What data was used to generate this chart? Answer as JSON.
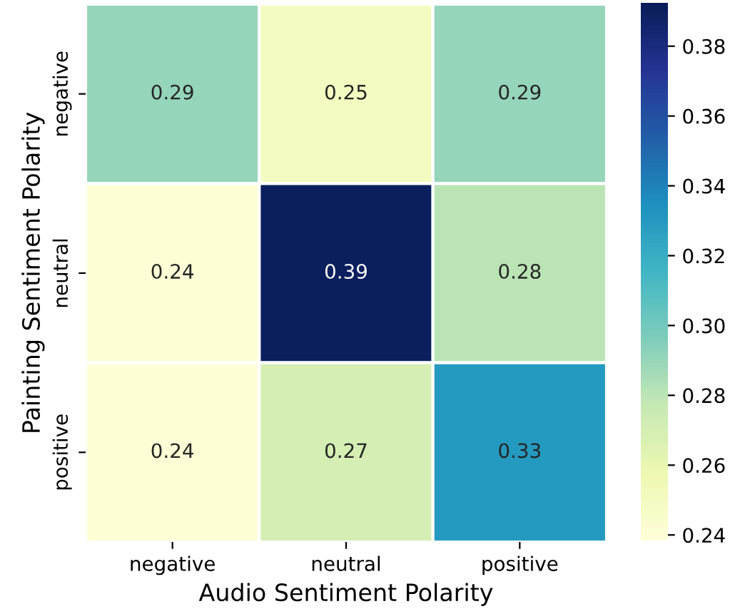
{
  "chart_data": {
    "type": "heatmap",
    "xlabel": "Audio Sentiment Polarity",
    "ylabel": "Painting Sentiment Polarity",
    "categories": [
      "negative",
      "neutral",
      "positive"
    ],
    "y_categories": [
      "negative",
      "neutral",
      "positive"
    ],
    "cells": [
      [
        0.29,
        0.25,
        0.29
      ],
      [
        0.24,
        0.39,
        0.28
      ],
      [
        0.24,
        0.27,
        0.33
      ]
    ],
    "data_labels": true,
    "clim": [
      0.238,
      0.392
    ],
    "cticks": [
      0.24,
      0.26,
      0.28,
      {
        "value": 0.3,
        "label": "0.30"
      },
      0.32,
      0.34,
      0.36,
      0.38
    ]
  }
}
